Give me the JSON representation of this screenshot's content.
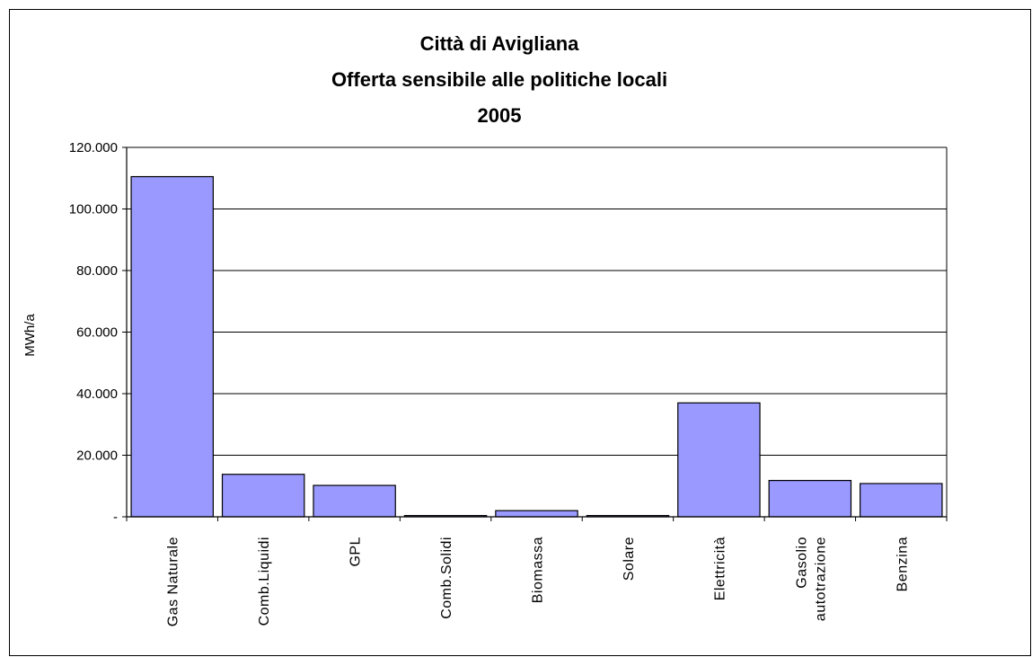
{
  "chart_data": {
    "type": "bar",
    "title_lines": [
      "Città di Avigliana",
      "Offerta sensibile alle politiche locali",
      "2005"
    ],
    "ylabel": "MWh/a",
    "xlabel": "",
    "ylim": [
      0,
      120000
    ],
    "yticks": [
      {
        "value": 0,
        "label": "-"
      },
      {
        "value": 20000,
        "label": "20.000"
      },
      {
        "value": 40000,
        "label": "40.000"
      },
      {
        "value": 60000,
        "label": "60.000"
      },
      {
        "value": 80000,
        "label": "80.000"
      },
      {
        "value": 100000,
        "label": "100.000"
      },
      {
        "value": 120000,
        "label": "120.000"
      }
    ],
    "categories": [
      [
        "Gas Naturale"
      ],
      [
        "Comb.Liquidi"
      ],
      [
        "GPL"
      ],
      [
        "Comb.Solidi"
      ],
      [
        "Biomassa"
      ],
      [
        "Solare"
      ],
      [
        "Elettricità"
      ],
      [
        "Gasolio",
        "autotrazione"
      ],
      [
        "Benzina"
      ]
    ],
    "values": [
      110500,
      13800,
      10200,
      400,
      2000,
      400,
      37000,
      11800,
      10800
    ],
    "grid": true,
    "legend": "none",
    "colors": {
      "bar_fill": "#9999ff",
      "bar_stroke": "#000000",
      "grid": "#000000"
    }
  }
}
